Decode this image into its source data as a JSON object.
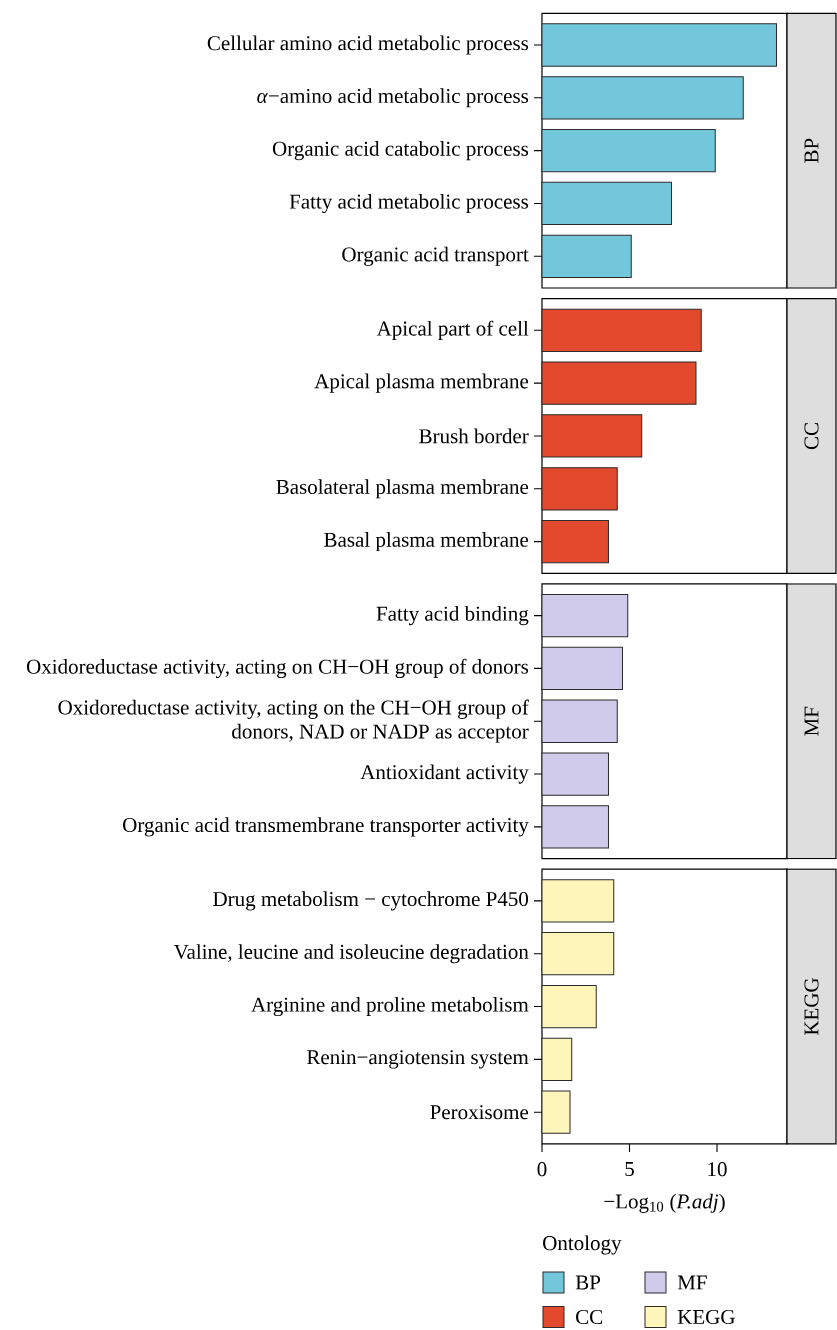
{
  "chart_data": [
    {
      "type": "bar",
      "orientation": "horizontal",
      "categories": [
        "Cellular amino acid metabolic process",
        "*α*−amino acid metabolic process",
        "Organic acid catabolic process",
        "Fatty acid metabolic process",
        "Organic acid transport"
      ],
      "series": [
        {
          "name": "BP",
          "color": "#72c7db",
          "values": [
            13.4,
            11.5,
            9.9,
            7.4,
            5.1
          ]
        }
      ],
      "xlim": [
        0,
        14
      ],
      "tick_labels": "y",
      "legend": "bottom"
    },
    {
      "type": "bar",
      "orientation": "horizontal",
      "categories": [
        "Apical part of cell",
        "Apical plasma membrane",
        "Brush border",
        "Basolateral plasma membrane",
        "Basal plasma membrane"
      ],
      "series": [
        {
          "name": "CC",
          "color": "#e2492d",
          "values": [
            9.1,
            8.8,
            5.7,
            4.3,
            3.8
          ]
        }
      ],
      "xlim": [
        0,
        14
      ],
      "tick_labels": "y",
      "legend": "bottom"
    },
    {
      "type": "bar",
      "orientation": "horizontal",
      "categories": [
        "Fatty acid binding",
        "Oxidoreductase activity, acting on CH−OH group of donors",
        "Oxidoreductase activity, acting on the CH−OH group of donors, NAD or NADP as acceptor",
        "Antioxidant activity",
        "Organic acid transmembrane transporter activity"
      ],
      "series": [
        {
          "name": "MF",
          "color": "#d1cbeb",
          "values": [
            4.9,
            4.6,
            4.3,
            3.8,
            3.8
          ]
        }
      ],
      "xlim": [
        0,
        14
      ],
      "tick_labels": "y",
      "legend": "bottom"
    },
    {
      "type": "bar",
      "orientation": "horizontal",
      "xlabel": "−Log$_{10}$ (*P.adj*)",
      "legend_title": "Ontology",
      "categories": [
        "Drug metabolism − cytochrome P450",
        "Valine, leucine and isoleucine degradation",
        "Arginine and proline metabolism",
        "Renin−angiotensin system",
        "Peroxisome"
      ],
      "series": [
        {
          "name": "KEGG",
          "color": "#fef5bb",
          "values": [
            4.1,
            4.1,
            3.1,
            1.7,
            1.6
          ]
        }
      ],
      "xlim": [
        0,
        14
      ],
      "xticks": [
        0,
        5,
        10
      ],
      "legend": "bottom"
    }
  ]
}
